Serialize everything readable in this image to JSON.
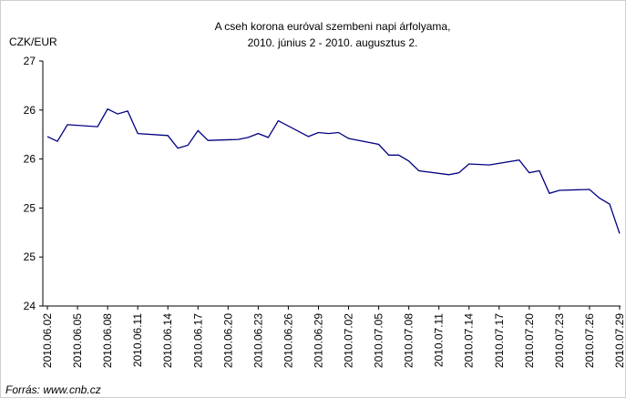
{
  "chart_data": {
    "type": "line",
    "title": "A cseh korona euróval szembeni napi árfolyama,",
    "subtitle": "2010. június 2 - 2010. augusztus 2.",
    "y_label": "CZK/EUR",
    "source": "Forrás: www.cnb.cz",
    "x": [
      "2010.06.02",
      "2010.06.03",
      "2010.06.04",
      "2010.06.07",
      "2010.06.08",
      "2010.06.09",
      "2010.06.10",
      "2010.06.11",
      "2010.06.14",
      "2010.06.15",
      "2010.06.16",
      "2010.06.17",
      "2010.06.18",
      "2010.06.21",
      "2010.06.22",
      "2010.06.23",
      "2010.06.24",
      "2010.06.25",
      "2010.06.28",
      "2010.06.29",
      "2010.06.30",
      "2010.07.01",
      "2010.07.02",
      "2010.07.05",
      "2010.07.06",
      "2010.07.07",
      "2010.07.08",
      "2010.07.09",
      "2010.07.12",
      "2010.07.13",
      "2010.07.14",
      "2010.07.16",
      "2010.07.19",
      "2010.07.20",
      "2010.07.21",
      "2010.07.22",
      "2010.07.23",
      "2010.07.26",
      "2010.07.27",
      "2010.07.28",
      "2010.07.29"
    ],
    "series": [
      {
        "name": "CZK/EUR",
        "color": "#000080",
        "values": [
          25.73,
          25.68,
          25.85,
          25.83,
          26.01,
          25.96,
          25.99,
          25.76,
          25.74,
          25.61,
          25.64,
          25.79,
          25.69,
          25.7,
          25.72,
          25.76,
          25.72,
          25.89,
          25.73,
          25.77,
          25.76,
          25.77,
          25.71,
          25.65,
          25.54,
          25.54,
          25.48,
          25.38,
          25.34,
          25.36,
          25.45,
          25.44,
          25.49,
          25.36,
          25.38,
          25.15,
          25.18,
          25.19,
          25.1,
          25.04,
          24.74
        ]
      }
    ],
    "xlim": [
      "2010.06.02",
      "2010.07.29"
    ],
    "xticks": [
      "2010.06.02",
      "2010.06.05",
      "2010.06.08",
      "2010.06.11",
      "2010.06.14",
      "2010.06.17",
      "2010.06.20",
      "2010.06.23",
      "2010.06.26",
      "2010.06.29",
      "2010.07.02",
      "2010.07.05",
      "2010.07.08",
      "2010.07.11",
      "2010.07.14",
      "2010.07.17",
      "2010.07.20",
      "2010.07.23",
      "2010.07.26",
      "2010.07.29"
    ],
    "ylim": [
      24,
      26.5
    ],
    "yticks": [
      {
        "value": 24,
        "label": "24"
      },
      {
        "value": 24.5,
        "label": "25"
      },
      {
        "value": 25,
        "label": "25"
      },
      {
        "value": 25.5,
        "label": "26"
      },
      {
        "value": 26,
        "label": "26"
      },
      {
        "value": 26.5,
        "label": "27"
      }
    ],
    "grid": false
  }
}
